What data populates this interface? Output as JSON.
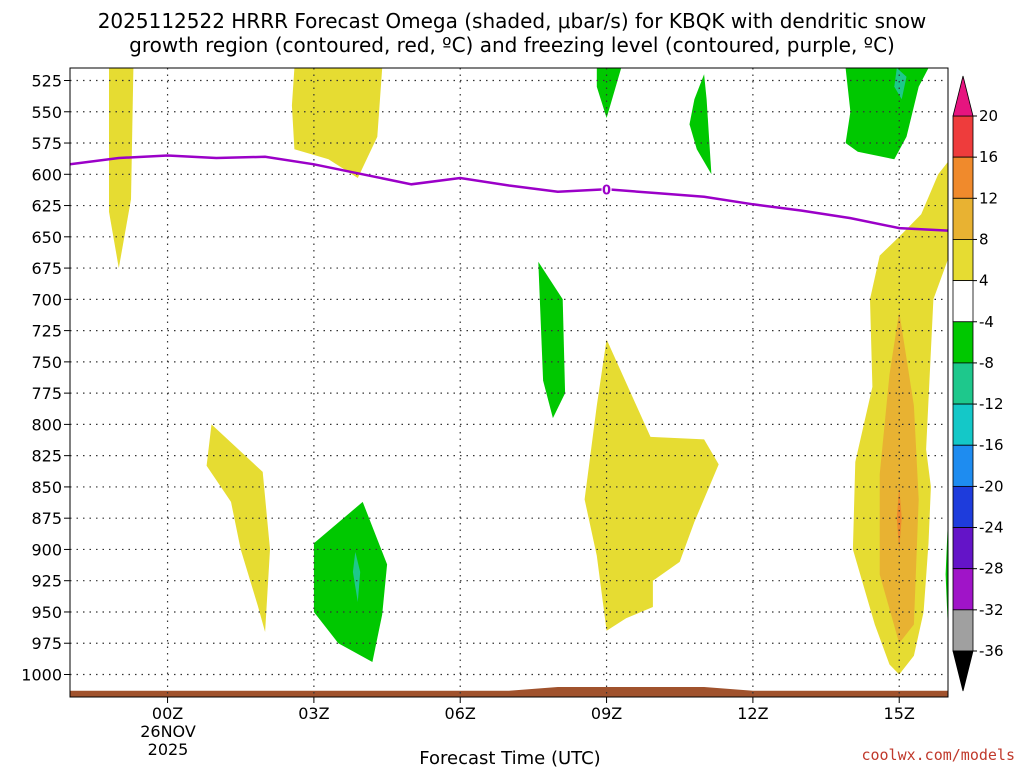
{
  "chart_data": {
    "type": "contour",
    "title_line1": "2025112522 HRRR Forecast Omega (shaded, μbar/s) for KBQK with dendritic snow",
    "title_line2": "growth region (contoured, red, ºC) and freezing level (contoured, purple, ºC)",
    "xlabel": "Forecast Time (UTC)",
    "credit": "coolwx.com/models",
    "grid": true,
    "y_axis": {
      "scale": "pressure",
      "range_top": 515,
      "range_bottom": 1018,
      "ticks": [
        525,
        550,
        575,
        600,
        625,
        650,
        675,
        700,
        725,
        750,
        775,
        800,
        825,
        850,
        875,
        900,
        925,
        950,
        975,
        1000
      ]
    },
    "x_axis": {
      "range_hours": [
        -2,
        16
      ],
      "ticks": [
        {
          "hour": 0,
          "label": "00Z"
        },
        {
          "hour": 3,
          "label": "03Z"
        },
        {
          "hour": 6,
          "label": "06Z"
        },
        {
          "hour": 9,
          "label": "09Z"
        },
        {
          "hour": 12,
          "label": "12Z"
        },
        {
          "hour": 15,
          "label": "15Z"
        }
      ],
      "date_line1": "26NOV",
      "date_line2": "2025"
    },
    "colorbar": {
      "labels": [
        "20",
        "16",
        "12",
        "8",
        "4",
        "-4",
        "-8",
        "-12",
        "-16",
        "-20",
        "-24",
        "-28",
        "-32",
        "-36"
      ],
      "bins": [
        {
          "low": 16,
          "high": 20,
          "color": "#ee3c3c"
        },
        {
          "low": 12,
          "high": 16,
          "color": "#f08a2c"
        },
        {
          "low": 8,
          "high": 12,
          "color": "#e8b232"
        },
        {
          "low": 4,
          "high": 8,
          "color": "#e6dc32"
        },
        {
          "low": -4,
          "high": 4,
          "color": "#ffffff"
        },
        {
          "low": -8,
          "high": -4,
          "color": "#00c800"
        },
        {
          "low": -12,
          "high": -8,
          "color": "#1ec88c"
        },
        {
          "low": -16,
          "high": -12,
          "color": "#14c8c8"
        },
        {
          "low": -20,
          "high": -16,
          "color": "#1e8cf0"
        },
        {
          "low": -24,
          "high": -20,
          "color": "#1e3cdc"
        },
        {
          "low": -28,
          "high": -24,
          "color": "#6414c8"
        },
        {
          "low": -32,
          "high": -28,
          "color": "#a014c8"
        },
        {
          "low": -36,
          "high": -32,
          "color": "#a0a0a0"
        }
      ],
      "top_arrow_color": "#e6147f",
      "bottom_arrow_color": "#000000"
    },
    "colors": {
      "omega_4_8": "#e6dc32",
      "omega_8_12": "#e8b232",
      "omega_12_16": "#f08a2c",
      "omega_neg4_neg8": "#00c800",
      "omega_neg8_neg12": "#1ec88c",
      "omega_neg12_neg16": "#14c8c8",
      "freezing_level": "#9b00c8",
      "ground": "#a0522d"
    },
    "freezing_level": {
      "label": "0",
      "points": [
        [
          -2,
          592
        ],
        [
          -1,
          587
        ],
        [
          0,
          585
        ],
        [
          1,
          587
        ],
        [
          2,
          586
        ],
        [
          3,
          592
        ],
        [
          4,
          600
        ],
        [
          5,
          608
        ],
        [
          6,
          603
        ],
        [
          7,
          609
        ],
        [
          8,
          614
        ],
        [
          9,
          612
        ],
        [
          10,
          615
        ],
        [
          11,
          618
        ],
        [
          12,
          624
        ],
        [
          13,
          629
        ],
        [
          14,
          635
        ],
        [
          15,
          643
        ],
        [
          16,
          645
        ]
      ]
    },
    "ground_surface": [
      [
        -2,
        1013
      ],
      [
        7,
        1013
      ],
      [
        8,
        1010
      ],
      [
        11,
        1010
      ],
      [
        12,
        1013
      ],
      [
        16,
        1013
      ]
    ],
    "omega_regions": [
      {
        "level": "4_8",
        "points": [
          [
            -1.2,
            515
          ],
          [
            -0.7,
            515
          ],
          [
            -0.75,
            620
          ],
          [
            -1.0,
            675
          ],
          [
            -1.2,
            630
          ]
        ]
      },
      {
        "level": "4_8",
        "points": [
          [
            2.6,
            515
          ],
          [
            4.4,
            515
          ],
          [
            4.3,
            570
          ],
          [
            3.9,
            603
          ],
          [
            3.3,
            588
          ],
          [
            2.6,
            580
          ],
          [
            2.55,
            545
          ]
        ]
      },
      {
        "level": "4_8",
        "points": [
          [
            0.9,
            800
          ],
          [
            1.95,
            838
          ],
          [
            2.1,
            900
          ],
          [
            2.0,
            966
          ],
          [
            1.85,
            945
          ],
          [
            1.5,
            900
          ],
          [
            1.3,
            862
          ],
          [
            0.8,
            833
          ]
        ]
      },
      {
        "level": "4_8",
        "points": [
          [
            9.0,
            732
          ],
          [
            9.9,
            810
          ],
          [
            11.0,
            812
          ],
          [
            11.3,
            832
          ],
          [
            10.8,
            878
          ],
          [
            10.5,
            910
          ],
          [
            9.95,
            925
          ],
          [
            9.95,
            946
          ],
          [
            9.4,
            955
          ],
          [
            9.0,
            965
          ],
          [
            8.8,
            905
          ],
          [
            8.55,
            860
          ],
          [
            8.8,
            785
          ]
        ]
      },
      {
        "level": "4_8",
        "points": [
          [
            15.8,
            600
          ],
          [
            16,
            590
          ],
          [
            16,
            668
          ],
          [
            15.7,
            700
          ],
          [
            15.55,
            820
          ],
          [
            15.65,
            850
          ],
          [
            15.6,
            895
          ],
          [
            15.5,
            950
          ],
          [
            15.3,
            985
          ],
          [
            15.0,
            1000
          ],
          [
            14.8,
            992
          ],
          [
            14.5,
            960
          ],
          [
            14.05,
            900
          ],
          [
            14.1,
            830
          ],
          [
            14.45,
            770
          ],
          [
            14.4,
            700
          ],
          [
            14.6,
            665
          ],
          [
            15.0,
            650
          ],
          [
            15.45,
            632
          ]
        ]
      },
      {
        "level": "8_12",
        "points": [
          [
            15.0,
            710
          ],
          [
            15.3,
            785
          ],
          [
            15.4,
            860
          ],
          [
            15.3,
            960
          ],
          [
            15.0,
            975
          ],
          [
            14.6,
            920
          ],
          [
            14.6,
            840
          ],
          [
            14.8,
            760
          ]
        ]
      },
      {
        "level": "12_16",
        "points": [
          [
            15.0,
            850
          ],
          [
            15.05,
            875
          ],
          [
            15.0,
            900
          ],
          [
            14.95,
            875
          ]
        ]
      },
      {
        "level": "neg4_neg8",
        "points": [
          [
            8.8,
            515
          ],
          [
            9.3,
            515
          ],
          [
            9.0,
            555
          ],
          [
            8.8,
            530
          ]
        ]
      },
      {
        "level": "neg4_neg8",
        "points": [
          [
            11.0,
            520
          ],
          [
            11.05,
            540
          ],
          [
            11.15,
            600
          ],
          [
            10.85,
            580
          ],
          [
            10.7,
            560
          ],
          [
            10.8,
            540
          ]
        ]
      },
      {
        "level": "neg4_neg8",
        "points": [
          [
            7.6,
            670
          ],
          [
            8.1,
            700
          ],
          [
            8.15,
            775
          ],
          [
            7.9,
            795
          ],
          [
            7.7,
            765
          ]
        ]
      },
      {
        "level": "neg4_neg8",
        "points": [
          [
            13.9,
            515
          ],
          [
            15.6,
            515
          ],
          [
            15.4,
            530
          ],
          [
            15.15,
            570
          ],
          [
            14.9,
            588
          ],
          [
            14.15,
            582
          ],
          [
            13.9,
            575
          ],
          [
            14.0,
            550
          ]
        ]
      },
      {
        "level": "neg4_neg8",
        "points": [
          [
            3.0,
            895
          ],
          [
            4.0,
            862
          ],
          [
            4.5,
            912
          ],
          [
            4.4,
            952
          ],
          [
            4.2,
            990
          ],
          [
            3.5,
            975
          ],
          [
            3.0,
            950
          ]
        ]
      },
      {
        "level": "neg4_neg8",
        "points": [
          [
            16,
            875
          ],
          [
            15.95,
            920
          ],
          [
            16,
            965
          ]
        ]
      },
      {
        "level": "neg8_neg12",
        "points": [
          [
            3.85,
            902
          ],
          [
            3.95,
            918
          ],
          [
            3.9,
            942
          ],
          [
            3.8,
            918
          ]
        ]
      },
      {
        "level": "neg8_neg12",
        "points": [
          [
            14.95,
            515
          ],
          [
            15.15,
            522
          ],
          [
            15.05,
            540
          ],
          [
            14.9,
            530
          ]
        ]
      }
    ]
  }
}
